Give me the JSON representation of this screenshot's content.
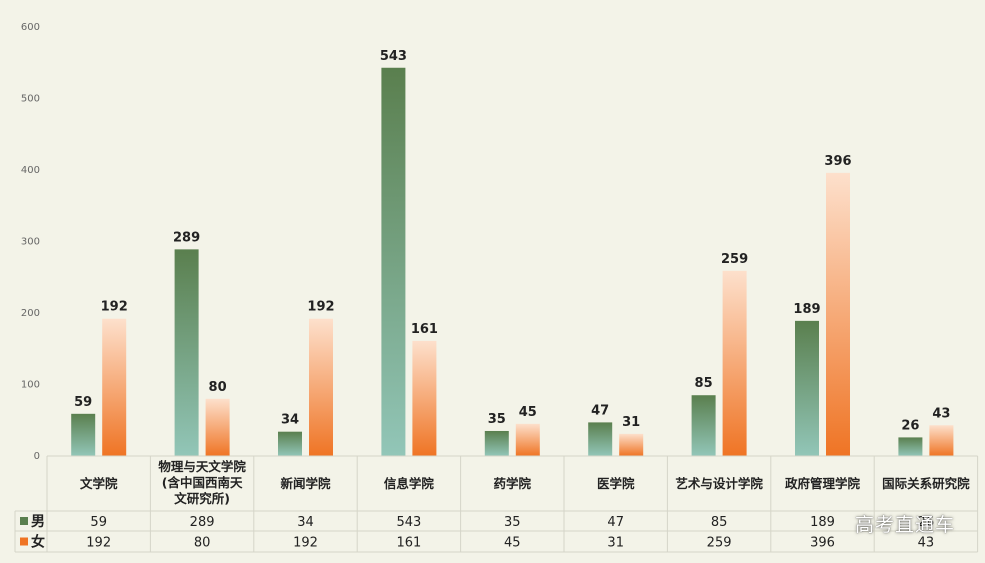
{
  "chart_data": {
    "type": "bar",
    "categories": [
      [
        "文学院"
      ],
      [
        "物理与天文学院",
        "(含中国西南天",
        "文研究所)"
      ],
      [
        "新闻学院"
      ],
      [
        "信息学院"
      ],
      [
        "药学院"
      ],
      [
        "医学院"
      ],
      [
        "艺术与设计学院"
      ],
      [
        "政府管理学院"
      ],
      [
        "国际关系研究院"
      ]
    ],
    "series": [
      {
        "name": "男",
        "color_top": "#5a7f4e",
        "color_bottom": "#92c6b8",
        "values": [
          59,
          289,
          34,
          543,
          35,
          47,
          85,
          189,
          26
        ]
      },
      {
        "name": "女",
        "color_top": "#fde0cc",
        "color_bottom": "#ef7424",
        "values": [
          192,
          80,
          192,
          161,
          45,
          31,
          259,
          396,
          43
        ]
      }
    ],
    "ylim": [
      0,
      600
    ],
    "yticks": [
      0,
      100,
      200,
      300,
      400,
      500,
      600
    ],
    "grid": false,
    "data_table": true,
    "legend_placement": "data-table-rows"
  },
  "watermark": "高考直通车"
}
